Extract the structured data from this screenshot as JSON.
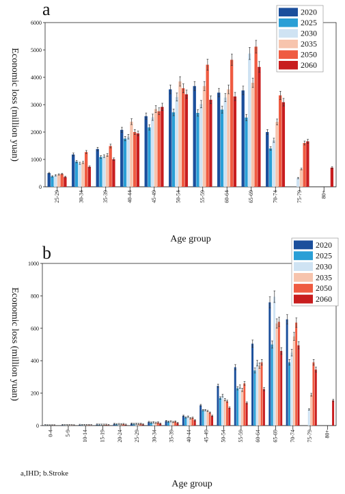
{
  "caption": "a,IHD; b.Stroke",
  "colors": [
    "#1b4f9c",
    "#2a9fd6",
    "#cfe3f3",
    "#f7c4ad",
    "#ef5b41",
    "#c81d1e"
  ],
  "chart_data": [
    {
      "type": "bar",
      "panel_label": "a",
      "xlabel": "Age group",
      "ylabel": "Economic loss (million yuan)",
      "ylim": [
        0,
        6000
      ],
      "yticks": [
        0,
        1000,
        2000,
        3000,
        4000,
        5000,
        6000
      ],
      "legend_position": "top-right",
      "error_bars": true,
      "categories": [
        "25-29",
        "30-34",
        "35-39",
        "40-44",
        "45-49",
        "50-54",
        "55-59",
        "60-64",
        "65-69",
        "70-74",
        "75-79",
        "80+"
      ],
      "series": [
        {
          "name": "2020",
          "values": [
            500,
            1180,
            1380,
            2080,
            2580,
            3560,
            3680,
            3440,
            3520,
            2000,
            0,
            0
          ]
        },
        {
          "name": "2025",
          "values": [
            380,
            920,
            1090,
            1760,
            2170,
            2720,
            2700,
            2820,
            2530,
            1400,
            0,
            0
          ]
        },
        {
          "name": "2030",
          "values": [
            420,
            860,
            1120,
            1830,
            2540,
            3280,
            3020,
            3260,
            4870,
            1700,
            320,
            0
          ]
        },
        {
          "name": "2035",
          "values": [
            450,
            890,
            1160,
            2380,
            2840,
            3850,
            3680,
            3560,
            3800,
            2370,
            650,
            0
          ]
        },
        {
          "name": "2050",
          "values": [
            470,
            1270,
            1490,
            2000,
            2760,
            3600,
            4460,
            4640,
            5120,
            3340,
            1600,
            0
          ]
        },
        {
          "name": "2060",
          "values": [
            360,
            730,
            1010,
            1950,
            2920,
            3380,
            3180,
            3300,
            4380,
            3090,
            1660,
            700
          ]
        }
      ]
    },
    {
      "type": "bar",
      "panel_label": "b",
      "xlabel": "Age group",
      "ylabel": "Economic loss (million yuan)",
      "ylim": [
        0,
        1000
      ],
      "yticks": [
        0,
        200,
        400,
        600,
        800,
        1000
      ],
      "legend_position": "top-right",
      "error_bars": true,
      "categories": [
        "0-4",
        "5-9",
        "10-14",
        "15-19",
        "20-24",
        "25-29",
        "30-34",
        "35-39",
        "40-44",
        "45-49",
        "50-54",
        "55-59",
        "60-64",
        "65-69",
        "70-74",
        "75-79",
        "80+"
      ],
      "series": [
        {
          "name": "2020",
          "values": [
            2,
            3,
            4,
            6,
            10,
            12,
            22,
            28,
            60,
            125,
            245,
            360,
            505,
            760,
            655,
            0,
            0
          ]
        },
        {
          "name": "2025",
          "values": [
            1,
            2,
            3,
            5,
            8,
            10,
            18,
            24,
            50,
            95,
            170,
            230,
            340,
            500,
            390,
            0,
            0
          ]
        },
        {
          "name": "2030",
          "values": [
            1,
            2,
            3,
            5,
            9,
            11,
            20,
            26,
            55,
            95,
            185,
            240,
            385,
            795,
            450,
            100,
            0
          ]
        },
        {
          "name": "2035",
          "values": [
            1,
            2,
            3,
            5,
            8,
            10,
            17,
            22,
            45,
            90,
            160,
            220,
            370,
            630,
            550,
            190,
            0
          ]
        },
        {
          "name": "2050",
          "values": [
            1,
            2,
            3,
            5,
            9,
            11,
            19,
            25,
            48,
            80,
            150,
            260,
            390,
            640,
            635,
            390,
            0
          ]
        },
        {
          "name": "2060",
          "values": [
            0,
            1,
            2,
            3,
            5,
            7,
            12,
            16,
            33,
            60,
            110,
            140,
            225,
            460,
            495,
            345,
            155
          ]
        }
      ]
    }
  ]
}
